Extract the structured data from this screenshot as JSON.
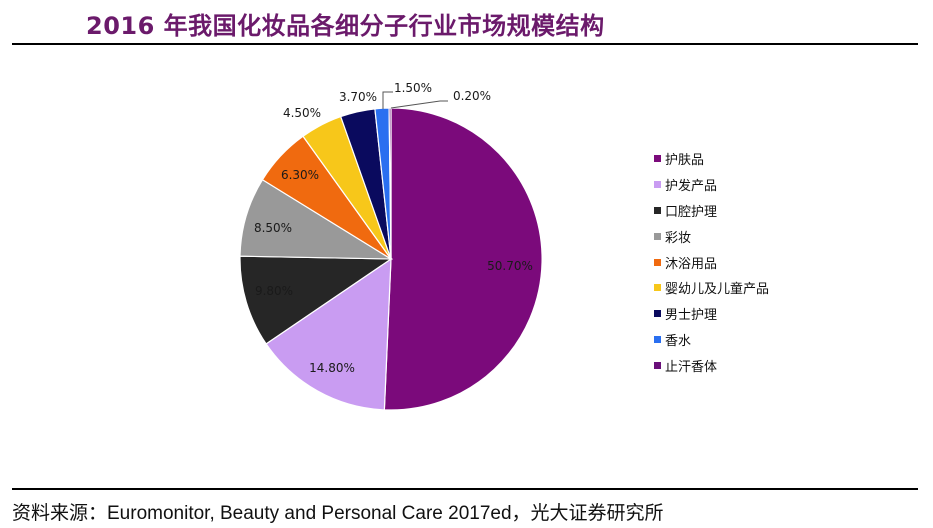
{
  "title": "2016 年我国化妆品各细分子行业市场规模结构",
  "source": "资料来源：Euromonitor, Beauty and Personal Care 2017ed，光大证券研究所",
  "chart_data": {
    "type": "pie",
    "title": "2016 年我国化妆品各细分子行业市场规模结构",
    "legend_position": "right",
    "categories": [
      "护肤品",
      "护发产品",
      "口腔护理",
      "彩妆",
      "沐浴用品",
      "婴幼儿及儿童产品",
      "男士护理",
      "香水",
      "止汗香体"
    ],
    "values": [
      50.7,
      14.8,
      9.8,
      8.5,
      6.3,
      4.5,
      3.7,
      1.5,
      0.2
    ],
    "labels": [
      "50.70%",
      "14.80%",
      "9.80%",
      "8.50%",
      "6.30%",
      "4.50%",
      "3.70%",
      "1.50%",
      "0.20%"
    ],
    "colors": [
      "#7b0a7b",
      "#c99cf2",
      "#262626",
      "#999999",
      "#f06a0f",
      "#f7c71a",
      "#0a0a5e",
      "#2a6ff0",
      "#6a0f7a"
    ]
  }
}
